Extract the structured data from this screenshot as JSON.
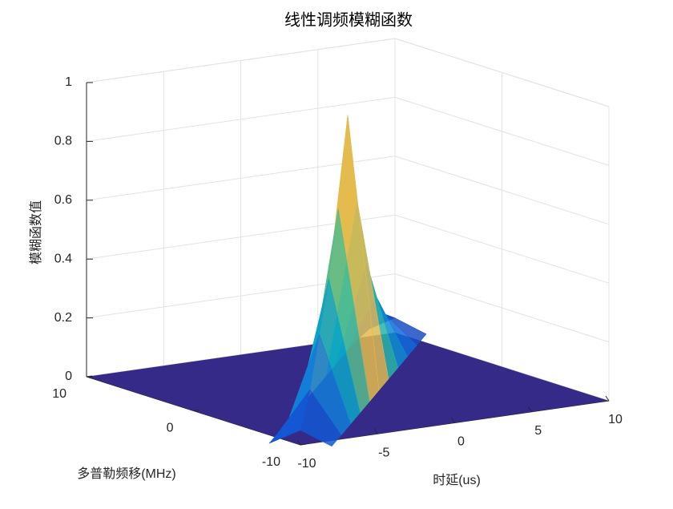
{
  "chart_data": {
    "type": "surface3d",
    "title": "线性调频模糊函数",
    "xlabel": "时延(us)",
    "ylabel": "多普勒频移(MHz)",
    "zlabel": "模糊函数值",
    "xlim": [
      -10,
      10
    ],
    "xticks": [
      -10,
      -5,
      0,
      5,
      10
    ],
    "ylim": [
      -10,
      10
    ],
    "yticks": [
      -10,
      0,
      10
    ],
    "zlim": [
      0,
      1
    ],
    "zticks": [
      0,
      0.2,
      0.4,
      0.6,
      0.8,
      1
    ],
    "grid": true,
    "floor_color": "#352a87",
    "ridge": {
      "x": [
        -10,
        -8,
        -6,
        -4,
        -2,
        0,
        2,
        4,
        6,
        8,
        10
      ],
      "y": [
        -10,
        -8,
        -6,
        -4,
        -2,
        0,
        2,
        4,
        6,
        8,
        10
      ],
      "z": [
        0.05,
        0.15,
        0.3,
        0.45,
        0.65,
        0.93,
        0.6,
        0.35,
        0.2,
        0.1,
        0.05
      ]
    }
  }
}
